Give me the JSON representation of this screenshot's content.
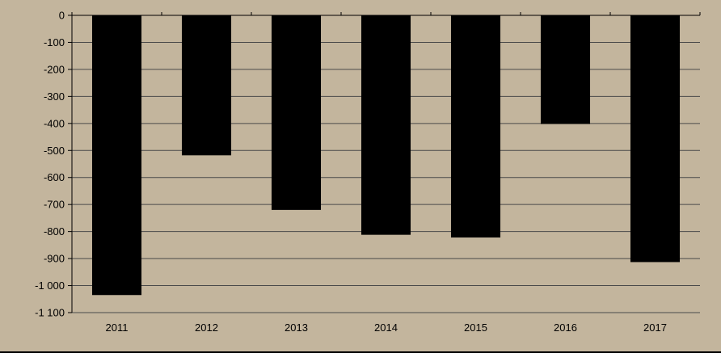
{
  "chart_data": {
    "type": "bar",
    "title": "",
    "xlabel": "",
    "ylabel": "",
    "categories": [
      "2011",
      "2012",
      "2013",
      "2014",
      "2015",
      "2016",
      "2017"
    ],
    "values": [
      -1035,
      -518,
      -720,
      -812,
      -822,
      -402,
      -913
    ],
    "ylim": [
      -1100,
      0
    ],
    "yticks": [
      0,
      -100,
      -200,
      -300,
      -400,
      -500,
      -600,
      -700,
      -800,
      -900,
      -1000,
      -1100
    ],
    "ytick_labels": [
      "0",
      "-100",
      "-200",
      "-300",
      "-400",
      "-500",
      "-600",
      "-700",
      "-800",
      "-900",
      "-1 000",
      "-1 100"
    ],
    "grid": true,
    "legend": "none",
    "colors": {
      "background": "#c3b59d",
      "bar": "#000000",
      "grid": "#4a4a4a",
      "axis": "#000000"
    }
  }
}
